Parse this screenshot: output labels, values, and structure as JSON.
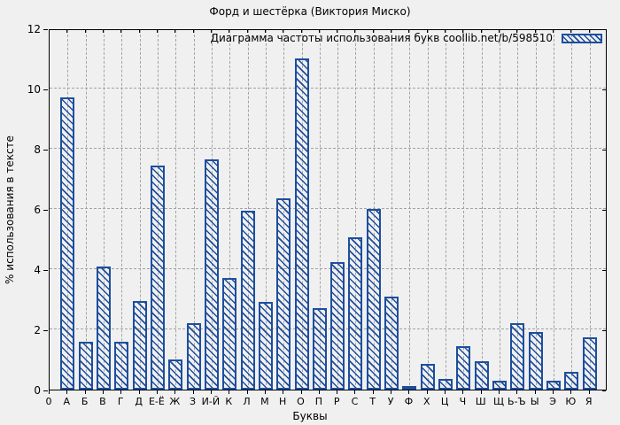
{
  "chart_data": {
    "type": "bar",
    "title": "Форд и шестёрка (Виктория Миско)",
    "legend_label": "Диаграмма частоты использования букв coollib.net/b/598510",
    "legend_position": "top-right-inside",
    "xlabel": "Буквы",
    "ylabel": "% использования в тексте",
    "ylim": [
      0,
      12
    ],
    "yticks": [
      0,
      2,
      4,
      6,
      8,
      10,
      12
    ],
    "grid": true,
    "categories": [
      "0",
      "А",
      "Б",
      "В",
      "Г",
      "Д",
      "Е-Ё",
      "Ж",
      "З",
      "И-Й",
      "К",
      "Л",
      "М",
      "Н",
      "О",
      "П",
      "Р",
      "С",
      "Т",
      "У",
      "Ф",
      "Х",
      "Ц",
      "Ч",
      "Ш",
      "Щ",
      "Ь-Ъ",
      "Ы",
      "Э",
      "Ю",
      "Я"
    ],
    "values": [
      0,
      9.7,
      1.6,
      4.1,
      1.6,
      2.95,
      7.45,
      1.0,
      2.2,
      7.65,
      3.7,
      5.95,
      2.9,
      6.35,
      11.0,
      2.7,
      4.25,
      5.05,
      6.0,
      3.1,
      0.1,
      0.85,
      0.35,
      1.45,
      0.95,
      0.3,
      2.2,
      1.9,
      0.3,
      0.6,
      1.75
    ],
    "colors": {
      "bar_hatch": "#1d4e9e",
      "background": "#f0f0f0",
      "grid": "#a3a3a3",
      "axis": "#000000",
      "text": "#000000"
    }
  }
}
